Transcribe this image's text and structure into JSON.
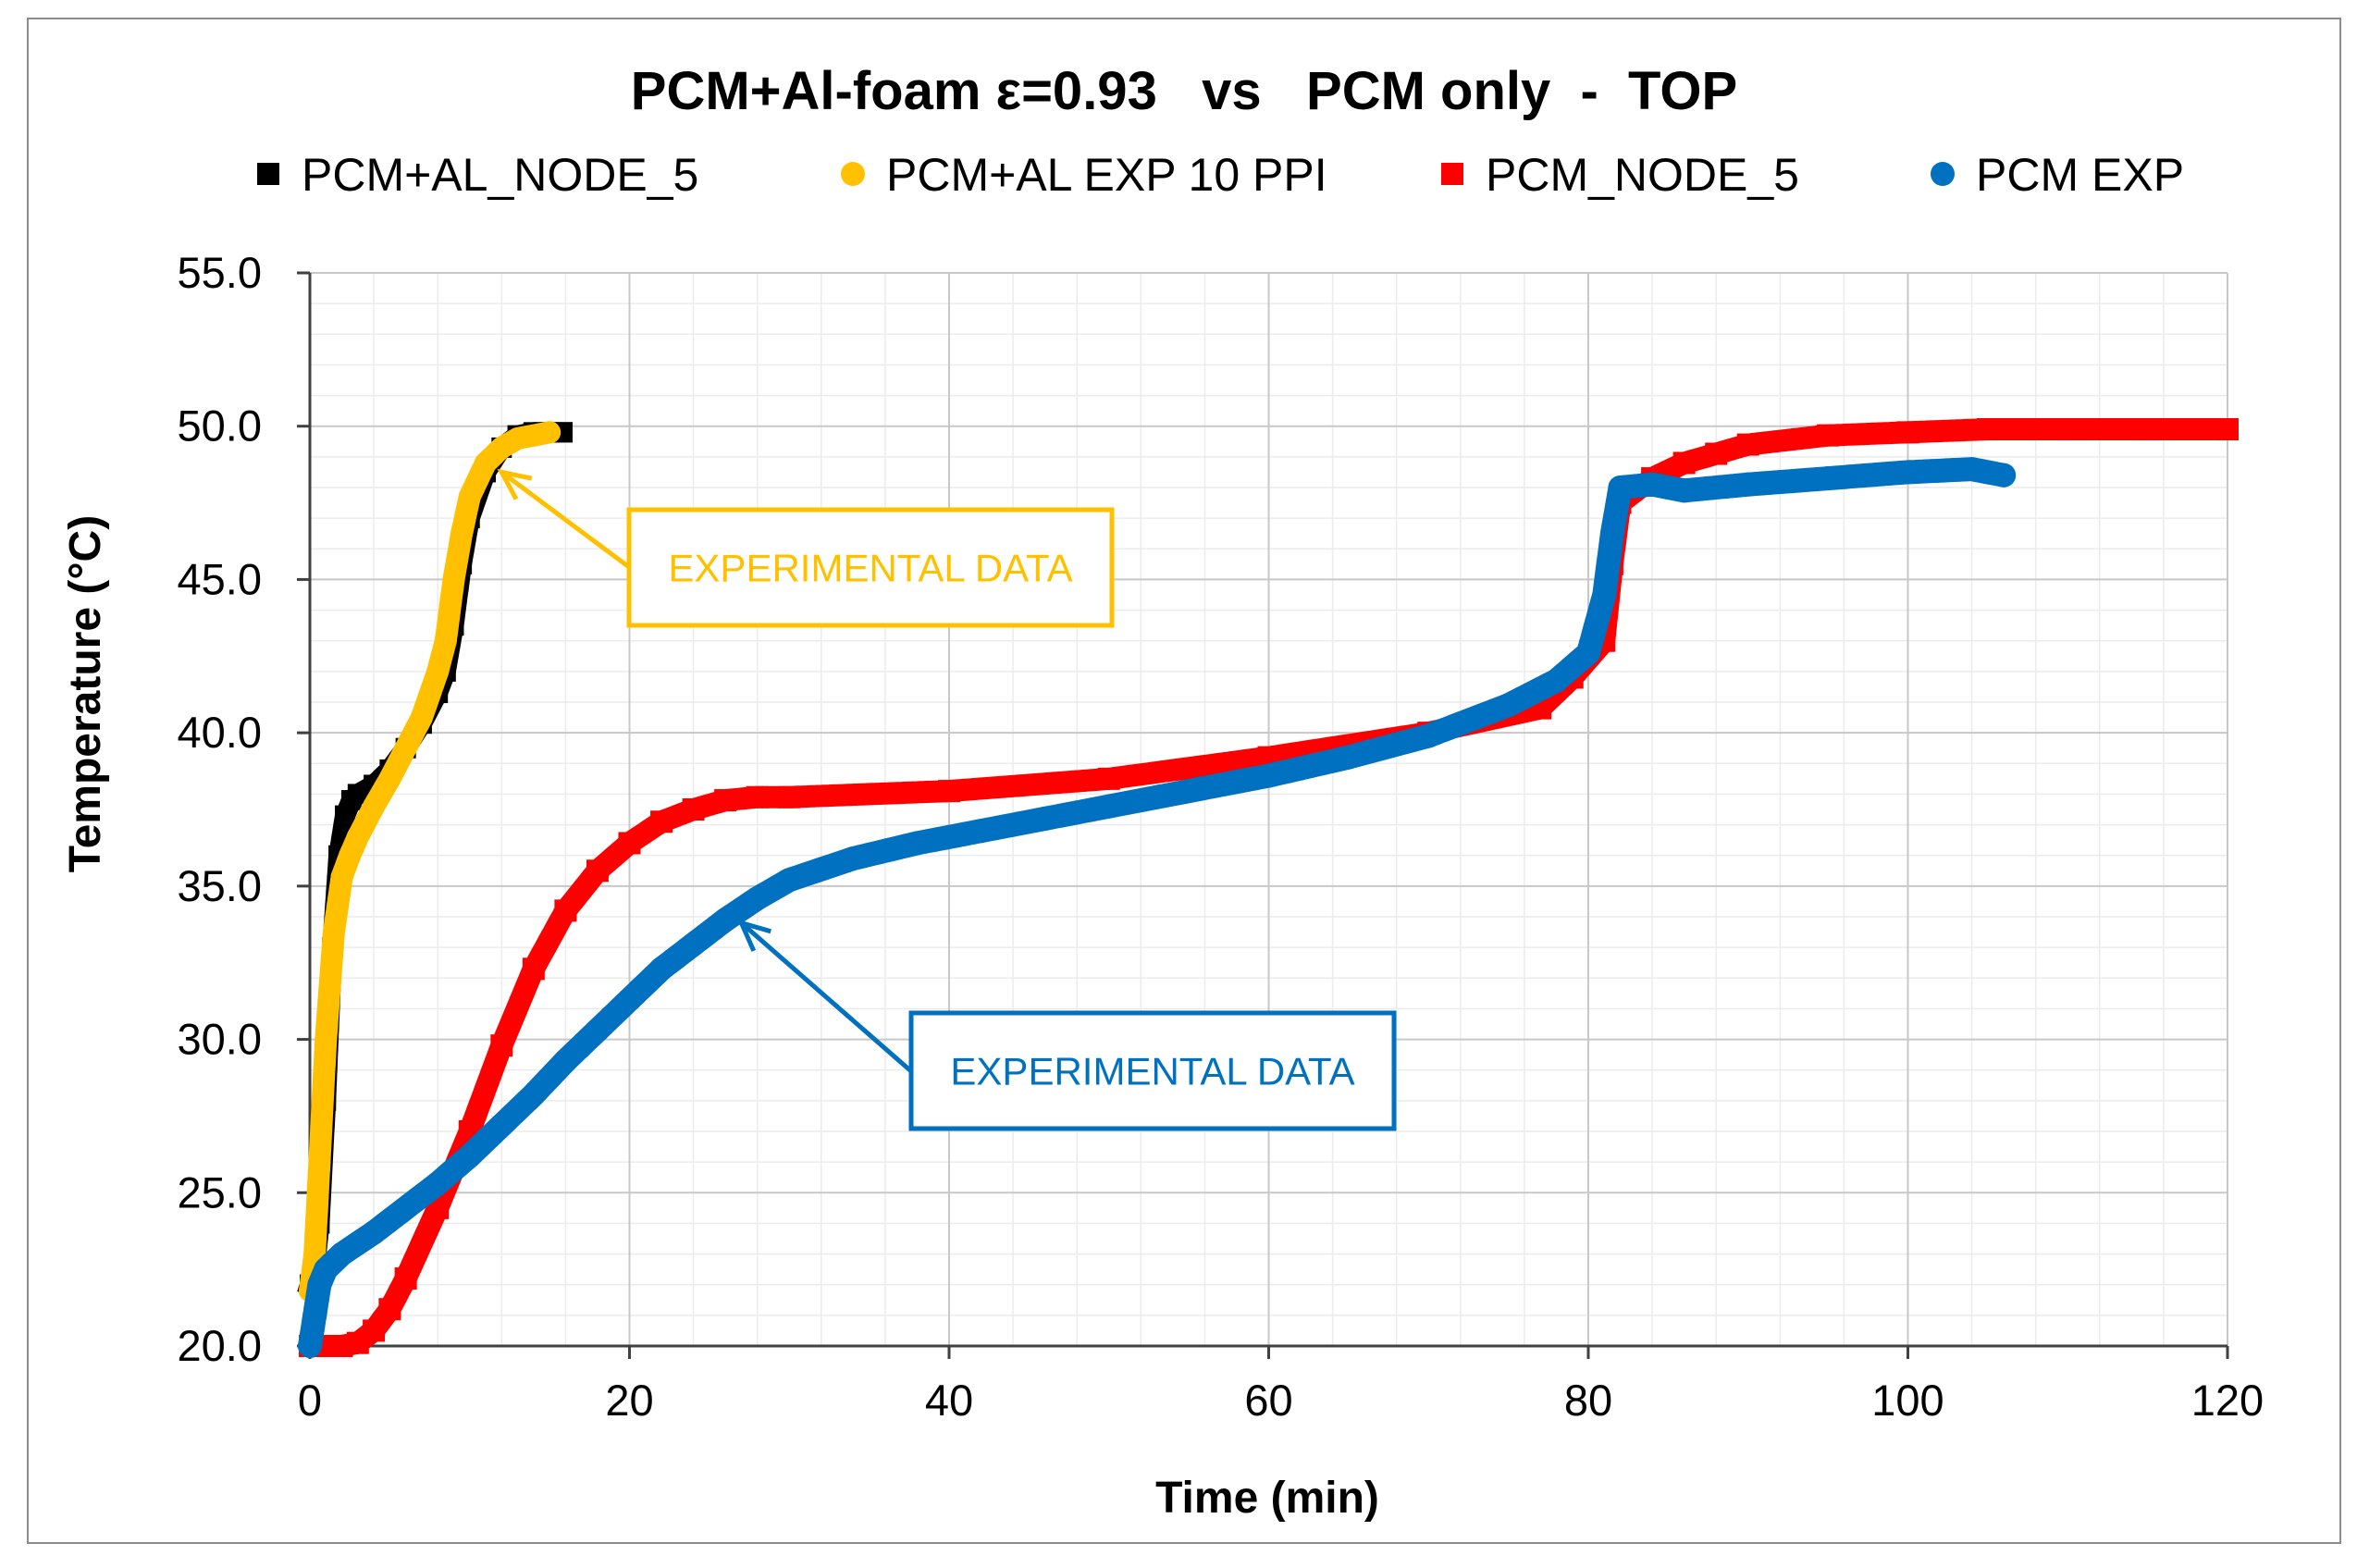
{
  "chart_data": {
    "type": "scatter",
    "title": "PCM+Al-foam ε=0.93   vs   PCM only  -  TOP",
    "xlabel": "Time (min)",
    "ylabel": "Temperature (°C)",
    "xlim": [
      0,
      120
    ],
    "ylim": [
      20,
      55
    ],
    "x_ticks": [
      0,
      20,
      40,
      60,
      80,
      100,
      120
    ],
    "y_ticks": [
      20,
      25,
      30,
      35,
      40,
      45,
      50,
      55
    ],
    "x_tick_labels": [
      "0",
      "20",
      "40",
      "60",
      "80",
      "100",
      "120"
    ],
    "y_tick_labels": [
      "20.0",
      "25.0",
      "30.0",
      "35.0",
      "40.0",
      "45.0",
      "50.0",
      "55.0"
    ],
    "grid": true,
    "legend_position": "top",
    "series": [
      {
        "name": "PCM+AL_NODE_5",
        "marker": "square",
        "color": "#000000",
        "x": [
          0,
          0.3,
          0.6,
          1.0,
          1.4,
          1.8,
          2.2,
          2.6,
          3.0,
          4.0,
          5.0,
          6.0,
          7.0,
          8.0,
          8.5,
          9.0,
          9.5,
          10.0,
          11.0,
          12.0,
          13.0,
          14.0,
          15.0,
          15.8
        ],
        "values": [
          22.0,
          22.5,
          24.0,
          28.0,
          33.0,
          36.0,
          37.3,
          37.8,
          38.0,
          38.3,
          38.8,
          39.5,
          40.3,
          41.3,
          42.0,
          43.5,
          45.5,
          47.0,
          48.5,
          49.3,
          49.7,
          49.8,
          49.8,
          49.8
        ]
      },
      {
        "name": "PCM+AL EXP 10 PPI",
        "marker": "circle",
        "color": "#FFC000",
        "x": [
          0,
          0.3,
          0.6,
          1.0,
          1.5,
          2.0,
          2.5,
          3.0,
          4.0,
          5.0,
          6.0,
          7.0,
          8.0,
          8.5,
          9.0,
          9.5,
          10.0,
          11.0,
          12.0,
          13.0,
          14.0,
          15.0
        ],
        "values": [
          21.8,
          23.0,
          26.0,
          30.0,
          33.5,
          35.3,
          36.0,
          36.6,
          37.6,
          38.5,
          39.5,
          40.5,
          42.0,
          43.0,
          45.0,
          46.5,
          47.7,
          48.8,
          49.3,
          49.6,
          49.7,
          49.8
        ]
      },
      {
        "name": "PCM_NODE_5",
        "marker": "square",
        "color": "#FF0000",
        "x": [
          0,
          1,
          2,
          3,
          4,
          5,
          6,
          8,
          10,
          12,
          14,
          16,
          18,
          20,
          22,
          24,
          26,
          28,
          30,
          40,
          50,
          60,
          70,
          77,
          79,
          81,
          81.5,
          82,
          84,
          86,
          88,
          90,
          95,
          100,
          105,
          110,
          115,
          120
        ],
        "values": [
          20.0,
          20.0,
          20.0,
          20.1,
          20.5,
          21.2,
          22.2,
          24.5,
          27.0,
          29.8,
          32.3,
          34.2,
          35.5,
          36.4,
          37.1,
          37.5,
          37.8,
          37.9,
          37.9,
          38.1,
          38.5,
          39.2,
          40.0,
          40.8,
          41.8,
          43.0,
          45.5,
          47.5,
          48.3,
          48.8,
          49.1,
          49.4,
          49.7,
          49.8,
          49.9,
          49.9,
          49.9,
          49.9
        ]
      },
      {
        "name": "PCM EXP",
        "marker": "circle",
        "color": "#0070C0",
        "x": [
          0,
          0.3,
          0.6,
          1.0,
          2,
          4,
          6,
          8,
          10,
          12,
          14,
          16,
          18,
          20,
          22,
          24,
          26,
          28,
          30,
          34,
          38,
          42,
          46,
          50,
          55,
          60,
          65,
          70,
          75,
          78,
          80,
          81,
          81.5,
          82,
          84,
          86,
          90,
          95,
          100,
          104,
          106
        ],
        "values": [
          20.0,
          21.0,
          22.0,
          22.5,
          23.0,
          23.7,
          24.5,
          25.3,
          26.2,
          27.2,
          28.2,
          29.3,
          30.3,
          31.3,
          32.3,
          33.1,
          33.9,
          34.6,
          35.2,
          35.9,
          36.4,
          36.8,
          37.2,
          37.6,
          38.1,
          38.6,
          39.2,
          39.9,
          40.9,
          41.7,
          42.6,
          44.5,
          46.5,
          48.0,
          48.1,
          47.9,
          48.1,
          48.3,
          48.5,
          48.6,
          48.4
        ]
      }
    ],
    "annotations": [
      {
        "text": "EXPERIMENTAL  DATA",
        "target_series": "PCM+AL EXP 10 PPI",
        "color": "#FFC000",
        "points_to": [
          12,
          48.5
        ]
      },
      {
        "text": "EXPERIMENTAL  DATA",
        "target_series": "PCM EXP",
        "color": "#0070C0",
        "points_to": [
          27,
          33.8
        ]
      }
    ]
  }
}
